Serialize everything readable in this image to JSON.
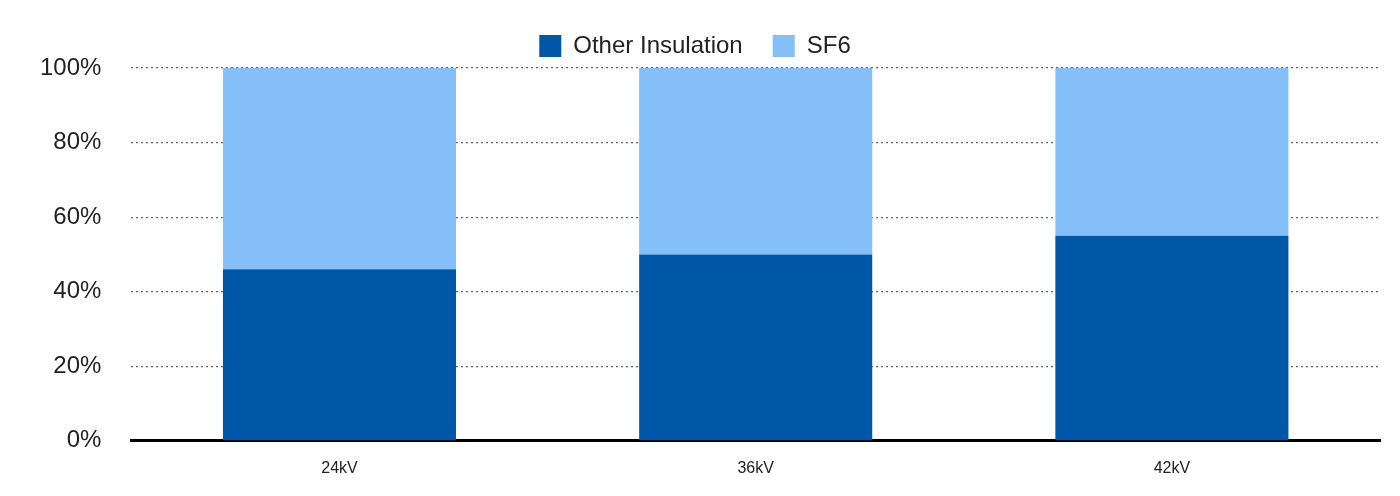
{
  "chart_data": {
    "type": "bar",
    "categories": [
      "24kV",
      "36kV",
      "42kV"
    ],
    "series": [
      {
        "name": "Other Insulation",
        "color": "#0057a8",
        "values": [
          46,
          50,
          55
        ]
      },
      {
        "name": "SF6",
        "color": "#85bff7",
        "values": [
          54,
          50,
          45
        ]
      }
    ],
    "stacked": true,
    "ylim": [
      0,
      100
    ],
    "yticks": [
      {
        "value": 0,
        "label": "0%"
      },
      {
        "value": 20,
        "label": "20%"
      },
      {
        "value": 40,
        "label": "40%"
      },
      {
        "value": 60,
        "label": "60%"
      },
      {
        "value": 80,
        "label": "80%"
      },
      {
        "value": 100,
        "label": "100%"
      }
    ],
    "grid": true,
    "legend": "top"
  }
}
